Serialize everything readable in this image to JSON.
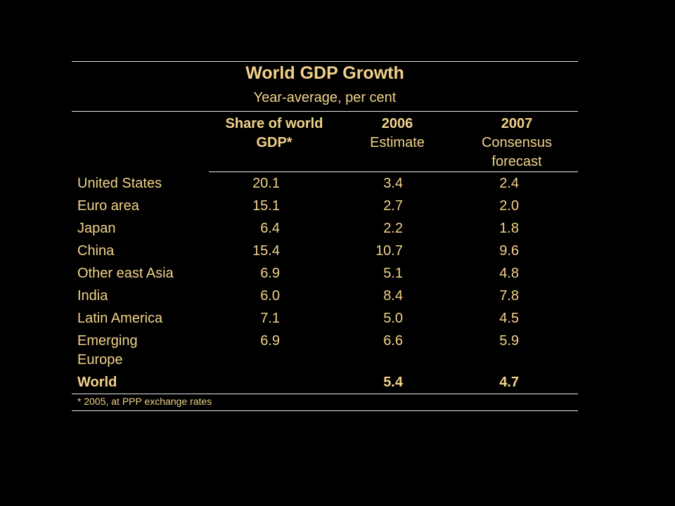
{
  "title": "World GDP Growth",
  "subtitle": "Year-average, per cent",
  "columns": [
    {
      "line1": "Share of world",
      "line2": "GDP*",
      "line3": ""
    },
    {
      "line1": "2006",
      "line2": "Estimate",
      "line3": ""
    },
    {
      "line1": "2007",
      "line2": "Consensus",
      "line3": "forecast"
    }
  ],
  "rows": [
    {
      "country": "United States",
      "share": "20.1",
      "est2006": "3.4",
      "fc2007": "2.4"
    },
    {
      "country": "Euro area",
      "share": "15.1",
      "est2006": "2.7",
      "fc2007": "2.0"
    },
    {
      "country": "Japan",
      "share": "6.4",
      "est2006": "2.2",
      "fc2007": "1.8"
    },
    {
      "country": "China",
      "share": "15.4",
      "est2006": "10.7",
      "fc2007": "9.6"
    },
    {
      "country": "Other east Asia",
      "share": "6.9",
      "est2006": "5.1",
      "fc2007": "4.8"
    },
    {
      "country": "India",
      "share": "6.0",
      "est2006": "8.4",
      "fc2007": "7.8"
    },
    {
      "country": "Latin America",
      "share": "7.1",
      "est2006": "5.0",
      "fc2007": "4.5"
    },
    {
      "country": "Emerging Europe",
      "share": "6.9",
      "est2006": "6.6",
      "fc2007": "5.9"
    },
    {
      "country": "World",
      "share": "",
      "est2006": "5.4",
      "fc2007": "4.7"
    }
  ],
  "footnote": "* 2005, at PPP exchange rates",
  "colors": {
    "background": "#000000",
    "text": "#f2d28a",
    "rule": "#e8e8e8"
  }
}
